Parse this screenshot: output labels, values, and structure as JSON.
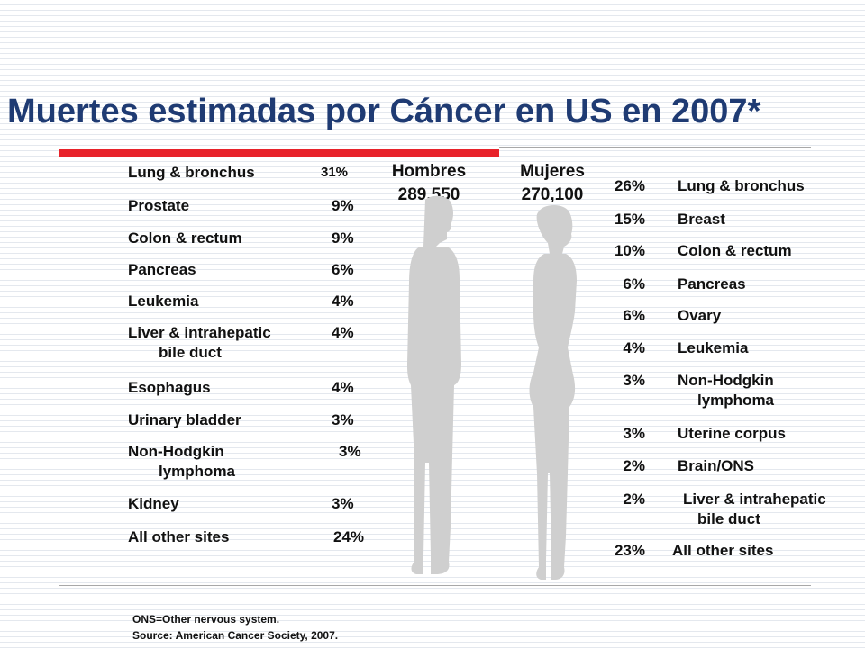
{
  "slide": {
    "title": "Muertes estimadas por Cáncer en US en 2007*",
    "men": {
      "label": "Hombres",
      "total": "289,550",
      "rows": [
        {
          "name": "Lung & bronchus",
          "name2": "",
          "pct": "31%"
        },
        {
          "name": "Prostate",
          "name2": "",
          "pct": "9%"
        },
        {
          "name": "Colon & rectum",
          "name2": "",
          "pct": "9%"
        },
        {
          "name": "Pancreas",
          "name2": "",
          "pct": "6%"
        },
        {
          "name": "Leukemia",
          "name2": "",
          "pct": "4%"
        },
        {
          "name": "Liver & intrahepatic",
          "name2": "bile duct",
          "pct": "4%"
        },
        {
          "name": "Esophagus",
          "name2": "",
          "pct": "4%"
        },
        {
          "name": "Urinary bladder",
          "name2": "",
          "pct": "3%"
        },
        {
          "name": "Non-Hodgkin",
          "name2": "lymphoma",
          "pct": "3%"
        },
        {
          "name": "Kidney",
          "name2": "",
          "pct": "3%"
        },
        {
          "name": "All other sites",
          "name2": "",
          "pct": "24%"
        }
      ]
    },
    "women": {
      "label": "Mujeres",
      "total": "270,100",
      "rows": [
        {
          "pct": "26%",
          "name": "Lung & bronchus",
          "name2": ""
        },
        {
          "pct": "15%",
          "name": "Breast",
          "name2": ""
        },
        {
          "pct": "10%",
          "name": "Colon & rectum",
          "name2": ""
        },
        {
          "pct": "6%",
          "name": "Pancreas",
          "name2": ""
        },
        {
          "pct": "6%",
          "name": "Ovary",
          "name2": ""
        },
        {
          "pct": "4%",
          "name": "Leukemia",
          "name2": ""
        },
        {
          "pct": "3%",
          "name": "Non-Hodgkin",
          "name2": "lymphoma"
        },
        {
          "pct": "3%",
          "name": "Uterine corpus",
          "name2": ""
        },
        {
          "pct": "2%",
          "name": "Brain/ONS",
          "name2": ""
        },
        {
          "pct": "2%",
          "name": "Liver & intrahepatic",
          "name2": "bile duct"
        },
        {
          "pct": "23%",
          "name": "All other sites",
          "name2": ""
        }
      ]
    },
    "footnote_1": "ONS=Other nervous system.",
    "footnote_2": "Source: American Cancer Society, 2007.",
    "colors": {
      "title": "#1f3b73",
      "accent_rule": "#e8222a",
      "figure": "#cfcfcf"
    }
  }
}
